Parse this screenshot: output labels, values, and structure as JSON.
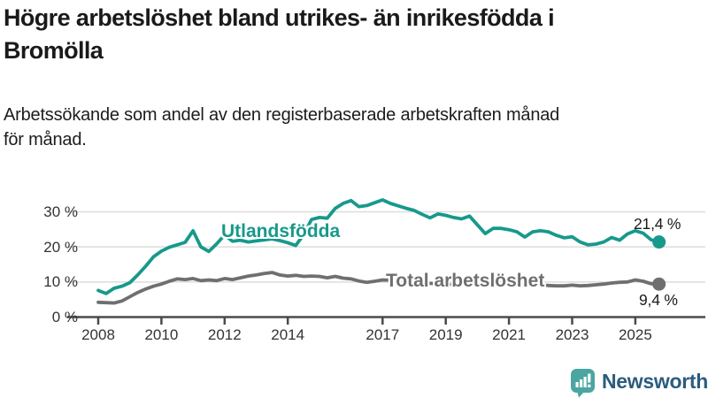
{
  "header": {
    "title_line1": "Högre arbetslöshet bland utrikes- än inrikesfödda i",
    "title_line2": "Bromölla",
    "subtitle_line1": "Arbetssökande som andel av den registerbaserade arbetskraften månad",
    "subtitle_line2": "för månad."
  },
  "chart_data": {
    "type": "line",
    "title": "Högre arbetslöshet bland utrikes- än inrikesfödda i Bromölla",
    "subtitle": "Arbetssökande som andel av den registerbaserade arbetskraften månad för månad.",
    "unit": "%",
    "grid": true,
    "x_axis": {
      "label": "",
      "range_years": [
        2008,
        2025.75
      ],
      "tick_years": [
        2008,
        2010,
        2012,
        2014,
        2017,
        2019,
        2021,
        2023,
        2025
      ]
    },
    "y_axis": {
      "label": "",
      "range": [
        0,
        35
      ],
      "ticks": [
        {
          "value": 0,
          "label": "0 %"
        },
        {
          "value": 10,
          "label": "10 %"
        },
        {
          "value": 20,
          "label": "20 %"
        },
        {
          "value": 30,
          "label": "30 %"
        }
      ]
    },
    "series": [
      {
        "name": "Utlandsfödda",
        "color": "#17998c",
        "end_label": "21,4 %",
        "end_value": 21.4,
        "x_start": 2008,
        "x_step": 0.25,
        "values": [
          7.6,
          6.7,
          8.2,
          8.8,
          9.8,
          12.0,
          14.5,
          17.2,
          18.8,
          19.9,
          20.6,
          21.3,
          24.6,
          20.0,
          18.7,
          20.9,
          23.4,
          21.6,
          21.9,
          21.4,
          21.7,
          22.0,
          22.3,
          21.8,
          21.2,
          20.4,
          23.5,
          27.8,
          28.4,
          28.2,
          31.0,
          32.4,
          33.2,
          31.5,
          31.8,
          32.6,
          33.4,
          32.4,
          31.7,
          31.0,
          30.4,
          29.3,
          28.3,
          29.4,
          29.0,
          28.4,
          28.0,
          28.8,
          26.3,
          23.8,
          25.3,
          25.3,
          24.9,
          24.3,
          22.8,
          24.3,
          24.6,
          24.3,
          23.3,
          22.6,
          22.9,
          21.4,
          20.6,
          20.8,
          21.4,
          22.7,
          21.9,
          23.7,
          24.6,
          23.9,
          22.0,
          21.4
        ]
      },
      {
        "name": "Total arbetslöshet",
        "color": "#6f6f6f",
        "end_label": "9,4 %",
        "end_value": 9.4,
        "x_start": 2008,
        "x_step": 0.25,
        "values": [
          4.2,
          4.1,
          4.0,
          4.6,
          5.8,
          7.0,
          8.0,
          8.8,
          9.4,
          10.2,
          10.9,
          10.7,
          11.0,
          10.4,
          10.6,
          10.4,
          11.0,
          10.7,
          11.2,
          11.7,
          12.0,
          12.4,
          12.7,
          12.0,
          11.7,
          11.9,
          11.6,
          11.7,
          11.6,
          11.2,
          11.6,
          11.1,
          10.9,
          10.3,
          9.9,
          10.2,
          10.6,
          10.5,
          10.3,
          10.1,
          10.0,
          9.8,
          9.6,
          9.5,
          9.4,
          9.3,
          9.3,
          9.4,
          9.6,
          10.4,
          10.6,
          10.4,
          10.1,
          9.8,
          9.6,
          9.4,
          9.2,
          9.0,
          8.9,
          8.9,
          9.1,
          8.9,
          9.0,
          9.2,
          9.4,
          9.7,
          9.9,
          10.0,
          10.6,
          10.2,
          9.5,
          9.4
        ]
      }
    ],
    "style": {
      "gridline_color": "#dddddd",
      "axis_color": "#4a4a4a",
      "line_width": 3.8,
      "end_dot_radius": 7.5
    }
  },
  "footer": {
    "brand": "Newsworthy",
    "logo_icon": "bar-chart-speech-bubble",
    "logo_color": "#4ba5a0",
    "brand_text_color": "#2b5c7d"
  }
}
